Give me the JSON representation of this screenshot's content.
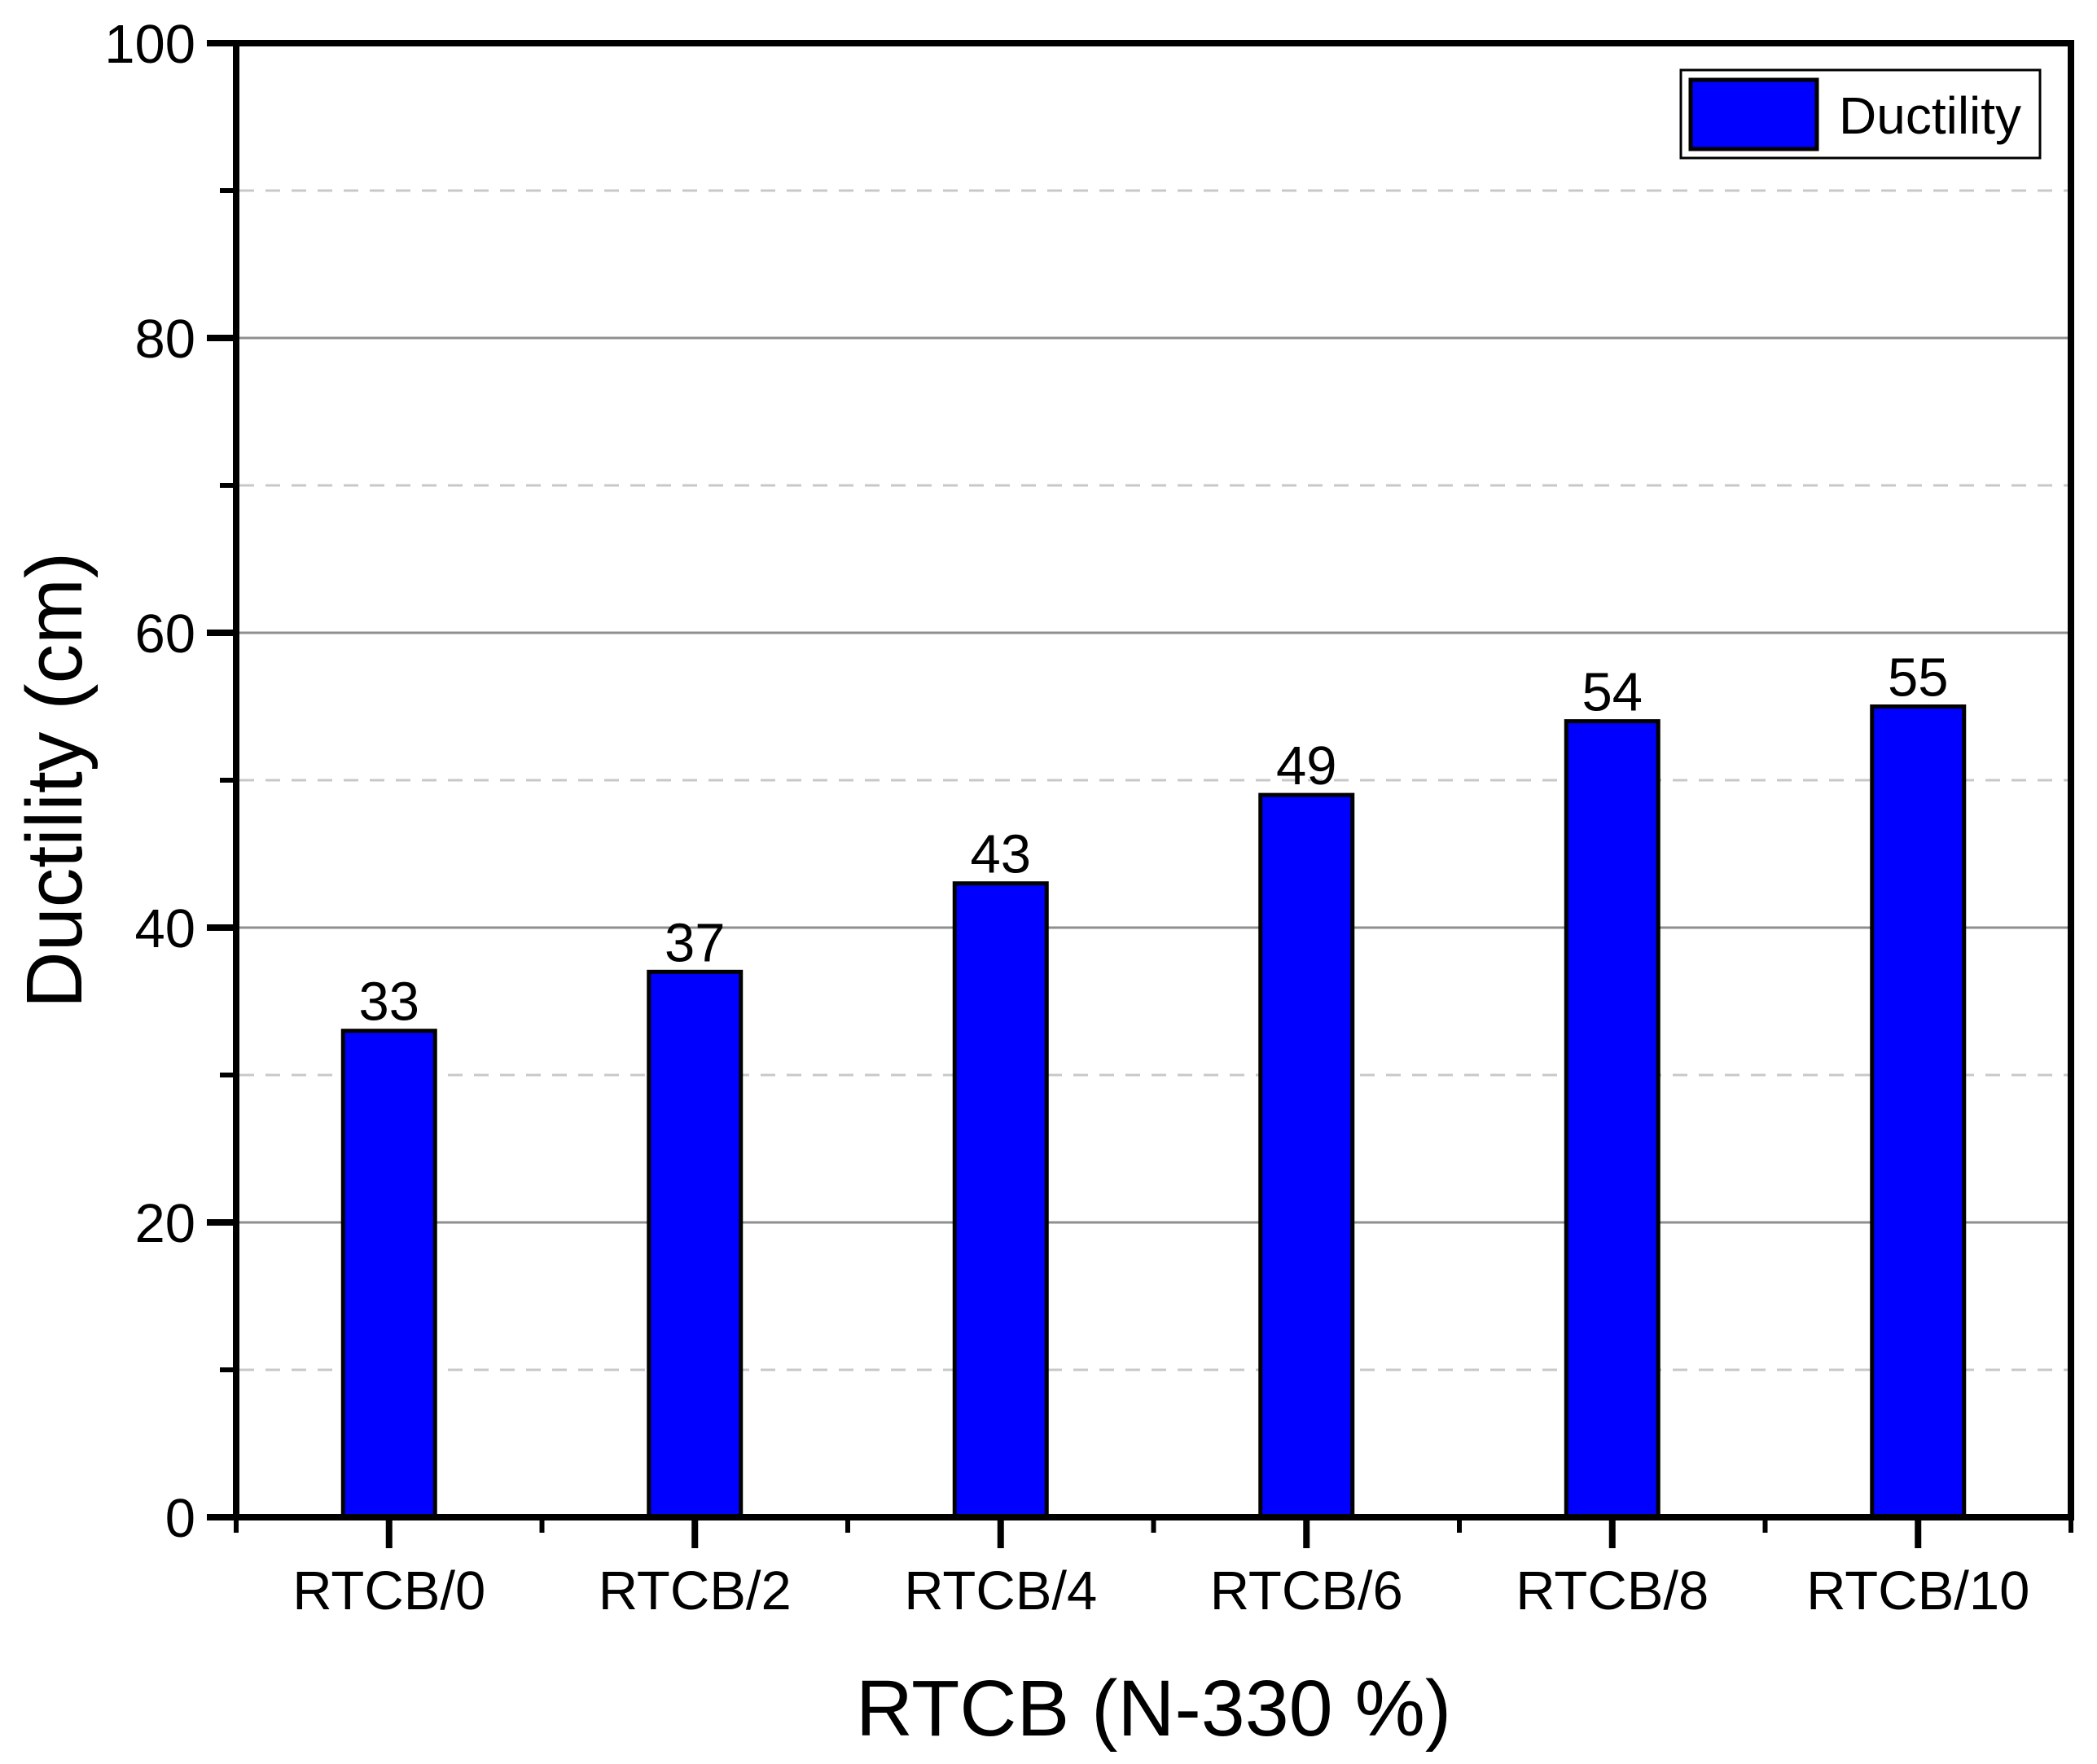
{
  "figure": {
    "background": "#ffffff"
  },
  "chart_data": {
    "type": "bar",
    "title": "",
    "categories": [
      "RTCB/0",
      "RTCB/2",
      "RTCB/4",
      "RTCB/6",
      "RTCB/8",
      "RTCB/10"
    ],
    "series": [
      {
        "name": "Ductility",
        "values": [
          33,
          37,
          43,
          49,
          54,
          55
        ],
        "color": "#0000FE"
      }
    ],
    "bar_value_labels": [
      "33",
      "37",
      "43",
      "49",
      "54",
      "55"
    ],
    "xlabel": "RTCB (N-330 %)",
    "ylabel": "Ductility (cm)",
    "ylim": [
      0,
      100
    ],
    "yticks_major": [
      0,
      20,
      40,
      60,
      80,
      100
    ],
    "yticks_minor": [
      10,
      30,
      50,
      70,
      90
    ],
    "grid": {
      "major_style": "solid",
      "minor_style": "dashed",
      "vertical": false
    },
    "legend": {
      "position": "top-right",
      "entries": [
        {
          "label": "Ductility",
          "swatch_color": "#0000FE"
        }
      ]
    }
  },
  "colors": {
    "bar_fill": "#0000FE",
    "bar_border": "#000000",
    "axis": "#000000",
    "grid_major": "#8f8f8f",
    "grid_minor": "#c8c8c8",
    "text": "#000000",
    "legend_border": "#000000",
    "background": "#ffffff"
  }
}
